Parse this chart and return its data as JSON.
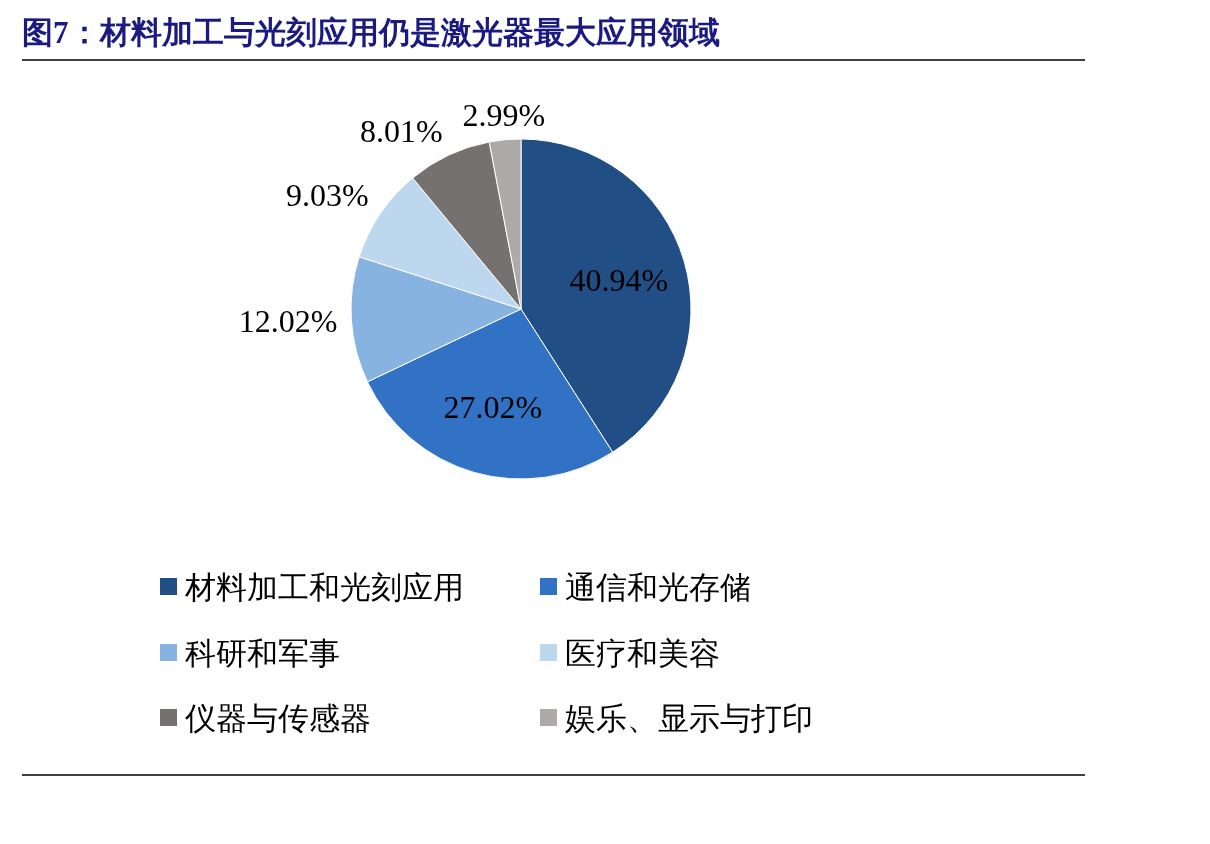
{
  "chart_data": {
    "type": "pie",
    "title": "图7：材料加工与光刻应用仍是激光器最大应用领域",
    "categories": [
      "材料加工和光刻应用",
      "通信和光存储",
      "科研和军事",
      "医疗和美容",
      "仪器与传感器",
      "娱乐、显示与打印"
    ],
    "values": [
      40.94,
      27.02,
      12.02,
      9.03,
      8.01,
      2.99
    ],
    "colors": [
      "#214f85",
      "#3172c4",
      "#86b3e0",
      "#bdd7ee",
      "#767171",
      "#aeaaaa"
    ],
    "value_labels": [
      "40.94%",
      "27.02%",
      "12.02%",
      "9.03%",
      "8.01%",
      "2.99%"
    ],
    "legend": "bottom"
  }
}
